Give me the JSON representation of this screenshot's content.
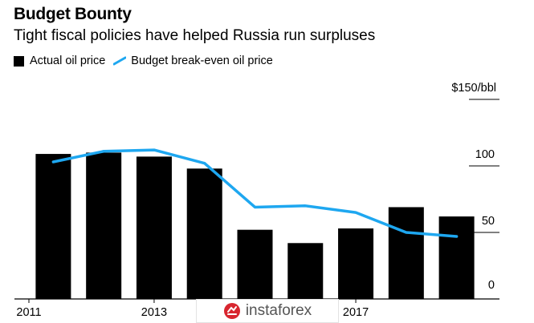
{
  "chart_data": {
    "type": "bar",
    "title": "Budget Bounty",
    "subtitle": "Tight fiscal policies have helped Russia run surpluses",
    "categories": [
      "2011",
      "2012",
      "2013",
      "2014",
      "2015",
      "2016",
      "2017",
      "2018",
      "2019"
    ],
    "x_tick_labels": [
      "2011",
      "2013",
      "2017"
    ],
    "series": [
      {
        "name": "Actual oil price",
        "type": "bar",
        "color": "#000000",
        "values": [
          109,
          110,
          107,
          98,
          52,
          42,
          53,
          69,
          62
        ]
      },
      {
        "name": "Budget break-even oil price",
        "type": "line",
        "color": "#1ea7f0",
        "values": [
          103,
          111,
          112,
          102,
          69,
          70,
          65,
          50,
          47
        ]
      }
    ],
    "y_tick_labels": [
      "$150/bbl",
      "100",
      "50",
      "0"
    ],
    "y_ticks": [
      150,
      100,
      50,
      0
    ],
    "ylim": [
      0,
      150
    ],
    "grid": false,
    "legend_position": "top-left"
  },
  "watermark": {
    "text": "instaforex",
    "icon": "instaforex-logo-icon"
  }
}
